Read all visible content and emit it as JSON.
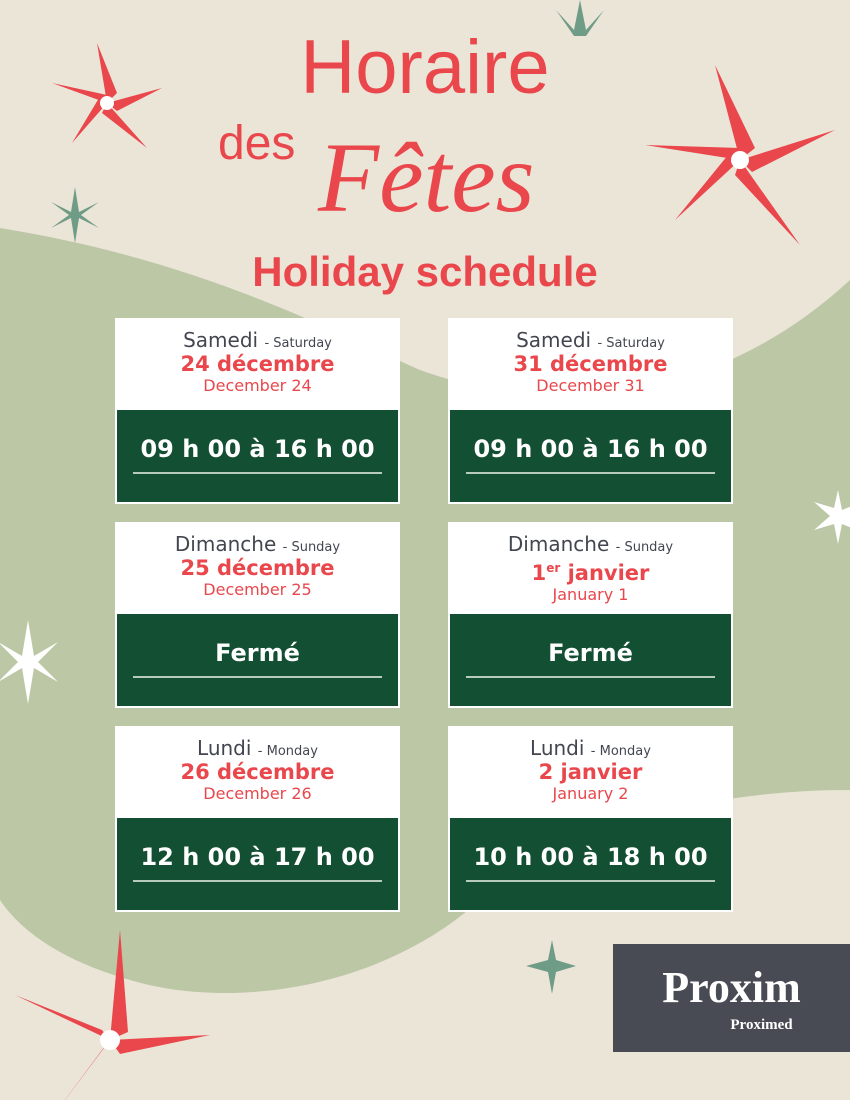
{
  "title": {
    "line1": "Horaire",
    "line2a": "des",
    "line2b": "Fêtes",
    "subtitle": "Holiday schedule"
  },
  "colors": {
    "background": "#ebe5d8",
    "wave": "#bcc7a6",
    "accent": "#e9474c",
    "box": "#134f33",
    "logo_bg": "#484b53",
    "logo_green": "#8dc63f"
  },
  "days": [
    {
      "day": "Samedi",
      "day_en": "- Saturday",
      "date": "24 décembre",
      "date_en": "December 24",
      "hours": "09 h 00 à 16 h 00"
    },
    {
      "day": "Samedi",
      "day_en": "- Saturday",
      "date": "31 décembre",
      "date_en": "December 31",
      "hours": "09 h 00 à 16 h 00"
    },
    {
      "day": "Dimanche",
      "day_en": "- Sunday",
      "date": "25 décembre",
      "date_en": "December 25",
      "hours": "Fermé"
    },
    {
      "day": "Dimanche",
      "day_en": "- Sunday",
      "date_num": "1",
      "date_sup": "er",
      "date_rest": " janvier",
      "date_en": "January 1",
      "hours": "Fermé"
    },
    {
      "day": "Lundi",
      "day_en": "- Monday",
      "date": "26 décembre",
      "date_en": "December 26",
      "hours": "12 h 00 à 17 h 00"
    },
    {
      "day": "Lundi",
      "day_en": "- Monday",
      "date": "2 janvier",
      "date_en": "January 2",
      "hours": "10 h 00 à 18 h 00"
    }
  ],
  "logo": {
    "main": "Proxim",
    "sub": "Proximed"
  }
}
